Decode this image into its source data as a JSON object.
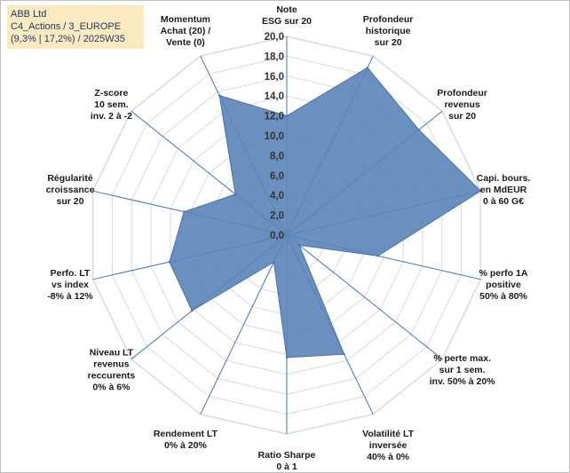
{
  "title_box": {
    "line1": "ABB Ltd",
    "line2": "C4_Actions / 3_EUROPE",
    "line3": "(9,3% | 17,2%) / 2025W35"
  },
  "chart_data": {
    "type": "radar",
    "rmin": 0,
    "rmax": 20,
    "tick_step": 2,
    "grid": true,
    "legend": "none",
    "ticks": [
      "0,0",
      "2,0",
      "4,0",
      "6,0",
      "8,0",
      "10,0",
      "12,0",
      "14,0",
      "16,0",
      "18,0",
      "20,0"
    ],
    "colors": {
      "fill": "#5b84b8",
      "stroke": "#4a72a8",
      "grid": "#d9d9d9",
      "spoke": "#4472c4"
    },
    "axes": [
      {
        "lines": [
          "Note",
          "ESG sur 20"
        ]
      },
      {
        "lines": [
          "Profondeur",
          "historique",
          "sur 20"
        ]
      },
      {
        "lines": [
          "Profondeur",
          "revenus",
          "sur 20"
        ]
      },
      {
        "lines": [
          "Capi. bours.",
          "en MdEUR",
          "0 à 60 G€"
        ]
      },
      {
        "lines": [
          "% perfo 1A",
          "positive",
          "50% à 80%"
        ]
      },
      {
        "lines": [
          "% perte max.",
          "sur 1 sem.",
          "inv. 50% à 20%"
        ]
      },
      {
        "lines": [
          "Volatilité LT",
          "inversée",
          "40% à 0%"
        ]
      },
      {
        "lines": [
          "Ratio Sharpe",
          "0 à 1"
        ]
      },
      {
        "lines": [
          "Rendement LT",
          "0% à 20%"
        ]
      },
      {
        "lines": [
          "Niveau LT",
          "revenus",
          "reccurents",
          "0% à 6%"
        ]
      },
      {
        "lines": [
          "Perfo. LT",
          "vs index",
          "-8% à 12%"
        ]
      },
      {
        "lines": [
          "Régularité",
          "croissance",
          "sur 20"
        ]
      },
      {
        "lines": [
          "Z-score",
          "10 sem.",
          "inv. 2 à -2"
        ]
      },
      {
        "lines": [
          "Momentum",
          "Achat (20) /",
          "Vente (0)"
        ]
      }
    ],
    "values": [
      12.0,
      18.7,
      17.0,
      20.0,
      9.4,
      1.6,
      13.3,
      12.3,
      3.0,
      12.2,
      12.1,
      10.6,
      6.6,
      15.6
    ]
  }
}
